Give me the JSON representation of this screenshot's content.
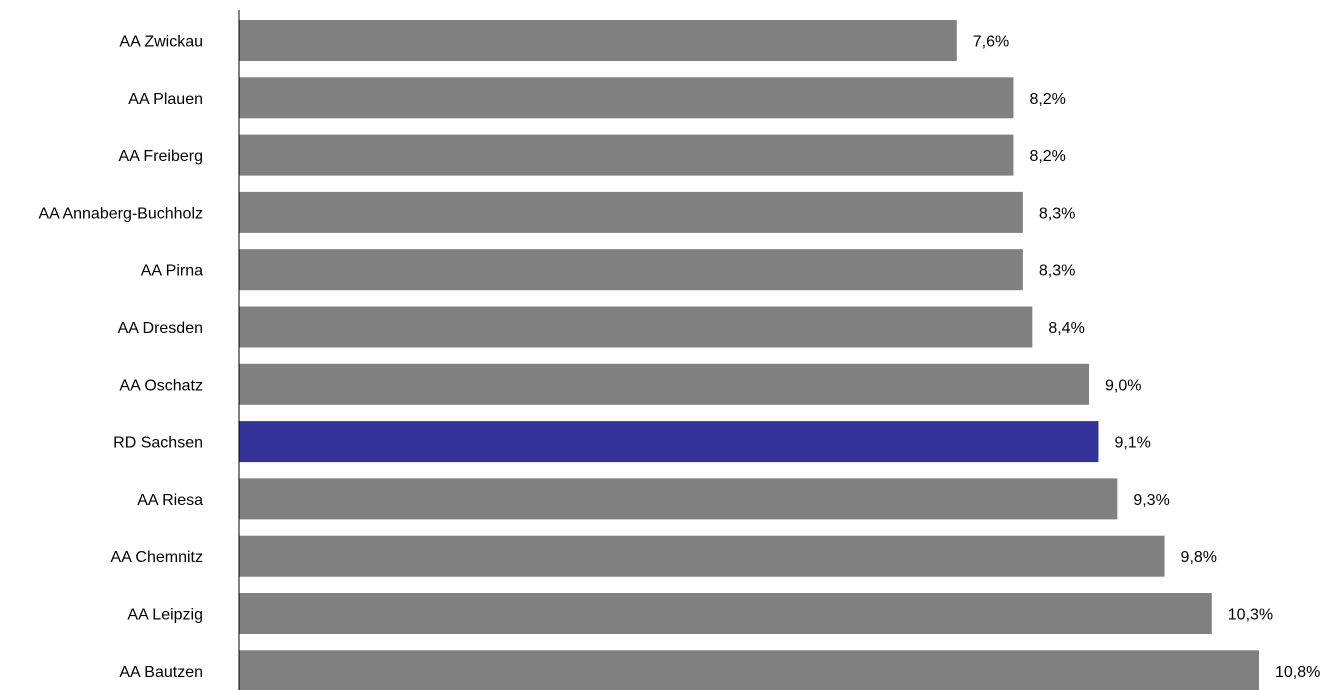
{
  "chart_data": {
    "type": "bar",
    "orientation": "horizontal",
    "title": "",
    "xlabel": "",
    "ylabel": "",
    "categories": [
      "AA Zwickau",
      "AA Plauen",
      "AA Freiberg",
      "AA Annaberg-Buchholz",
      "AA Pirna",
      "AA Dresden",
      "AA Oschatz",
      "RD Sachsen",
      "AA Riesa",
      "AA Chemnitz",
      "AA Leipzig",
      "AA Bautzen"
    ],
    "values": [
      7.6,
      8.2,
      8.2,
      8.3,
      8.3,
      8.4,
      9.0,
      9.1,
      9.3,
      9.8,
      10.3,
      10.8
    ],
    "value_labels": [
      "7,6%",
      "8,2%",
      "8,2%",
      "8,3%",
      "8,3%",
      "8,4%",
      "9,0%",
      "9,1%",
      "9,3%",
      "9,8%",
      "10,3%",
      "10,8%"
    ],
    "highlight_category": "RD Sachsen",
    "xlim": [
      0,
      10.8
    ],
    "grid": false,
    "legend": "none",
    "colors": {
      "bar": "#808080",
      "highlight": "#333399",
      "axis": "#000000"
    }
  }
}
